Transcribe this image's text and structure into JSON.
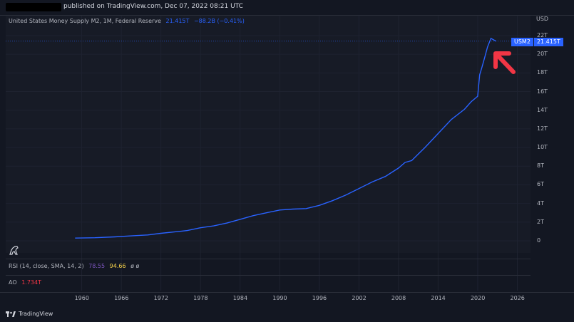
{
  "header": {
    "published": "published on TradingView.com, Dec 07, 2022 08:21 UTC"
  },
  "legend": {
    "name": "United States Money Supply M2, 1M, Federal Reserve",
    "value": "21.415T",
    "change": "−88.2B (−0.41%)"
  },
  "axis": {
    "currency": "USD"
  },
  "price_tag": {
    "symbol": "USM2",
    "value": "21.415T"
  },
  "rsi": {
    "label": "RSI (14, close, SMA, 14, 2)",
    "v1": "78.55",
    "v2": "94.66",
    "v3": "ø  ø"
  },
  "ao": {
    "label": "AO",
    "value": "1.734T"
  },
  "footer": {
    "brand": "TradingView"
  },
  "colors": {
    "line": "#2962ff",
    "arrow": "#f23645",
    "background": "#131722"
  },
  "chart_data": {
    "type": "line",
    "series": [
      {
        "name": "USM2",
        "x": [
          1959,
          1962,
          1965,
          1968,
          1970,
          1972,
          1974,
          1976,
          1978,
          1980,
          1982,
          1984,
          1986,
          1988,
          1990,
          1992,
          1994,
          1996,
          1998,
          2000,
          2002,
          2004,
          2006,
          2008,
          2009,
          2010,
          2011,
          2012,
          2014,
          2016,
          2018,
          2019,
          2020,
          2020.3,
          2020.6,
          2021,
          2021.5,
          2022,
          2022.8
        ],
        "y": [
          0.29,
          0.33,
          0.42,
          0.55,
          0.63,
          0.8,
          0.95,
          1.1,
          1.4,
          1.6,
          1.9,
          2.3,
          2.7,
          3.0,
          3.3,
          3.4,
          3.45,
          3.8,
          4.3,
          4.9,
          5.6,
          6.3,
          6.9,
          7.8,
          8.4,
          8.6,
          9.3,
          10.0,
          11.5,
          13.0,
          14.1,
          14.9,
          15.5,
          17.8,
          18.5,
          19.5,
          20.8,
          21.7,
          21.4
        ]
      }
    ],
    "yticks": [
      "0",
      "2T",
      "4T",
      "6T",
      "8T",
      "10T",
      "12T",
      "14T",
      "16T",
      "18T",
      "20T",
      "22T"
    ],
    "xticks": [
      "1960",
      "1966",
      "1972",
      "1978",
      "1984",
      "1990",
      "1996",
      "2002",
      "2008",
      "2014",
      "2020",
      "2026"
    ],
    "xlim": [
      1950,
      2028
    ],
    "ylim": [
      0,
      22
    ],
    "grid": true,
    "annotation": "red arrow pointing to latest value"
  }
}
